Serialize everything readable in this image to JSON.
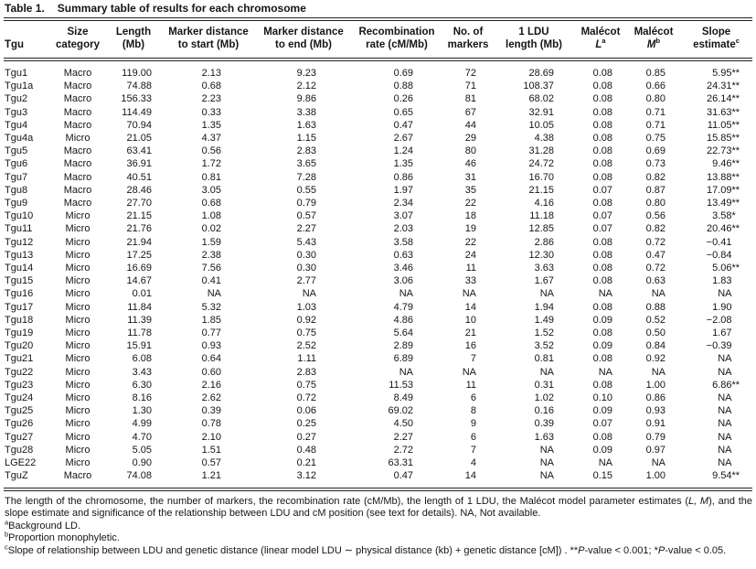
{
  "title": {
    "label": "Table 1.",
    "caption": "Summary table of results for each chromosome"
  },
  "table": {
    "columns": [
      {
        "id": "tgu",
        "line1": "",
        "line2": "Tgu"
      },
      {
        "id": "size",
        "line1": "Size",
        "line2": "category"
      },
      {
        "id": "length",
        "line1": "Length",
        "line2": "(Mb)"
      },
      {
        "id": "mdstart",
        "line1": "Marker distance",
        "line2": "to start (Mb)"
      },
      {
        "id": "mdend",
        "line1": "Marker distance",
        "line2": "to end (Mb)"
      },
      {
        "id": "recomb",
        "line1": "Recombination",
        "line2": "rate (cM/Mb)"
      },
      {
        "id": "markers",
        "line1": "No. of",
        "line2": "markers"
      },
      {
        "id": "ldu",
        "line1": "1 LDU",
        "line2": "length (Mb)"
      },
      {
        "id": "ml",
        "line1": "Malécot",
        "line2": "L",
        "italic2": true,
        "sup": "a"
      },
      {
        "id": "mm",
        "line1": "Malécot",
        "line2": "M",
        "italic2": true,
        "sup": "b"
      },
      {
        "id": "slope",
        "line1": "Slope",
        "line2": "estimate",
        "sup": "c"
      }
    ],
    "rows": [
      [
        "Tgu1",
        "Macro",
        "119.00",
        "2.13",
        "9.23",
        "0.69",
        "72",
        "28.69",
        "0.08",
        "0.85",
        "5.95**"
      ],
      [
        "Tgu1a",
        "Macro",
        "74.88",
        "0.68",
        "2.12",
        "0.88",
        "71",
        "108.37",
        "0.08",
        "0.66",
        "24.31**"
      ],
      [
        "Tgu2",
        "Macro",
        "156.33",
        "2.23",
        "9.86",
        "0.26",
        "81",
        "68.02",
        "0.08",
        "0.80",
        "26.14**"
      ],
      [
        "Tgu3",
        "Macro",
        "114.49",
        "0.33",
        "3.38",
        "0.65",
        "67",
        "32.91",
        "0.08",
        "0.71",
        "31.63**"
      ],
      [
        "Tgu4",
        "Macro",
        "70.94",
        "1.35",
        "1.63",
        "0.47",
        "44",
        "10.05",
        "0.08",
        "0.71",
        "11.05**"
      ],
      [
        "Tgu4a",
        "Micro",
        "21.05",
        "4.37",
        "1.15",
        "2.67",
        "29",
        "4.38",
        "0.08",
        "0.75",
        "15.85**"
      ],
      [
        "Tgu5",
        "Macro",
        "63.41",
        "0.56",
        "2.83",
        "1.24",
        "80",
        "31.28",
        "0.08",
        "0.69",
        "22.73**"
      ],
      [
        "Tgu6",
        "Macro",
        "36.91",
        "1.72",
        "3.65",
        "1.35",
        "46",
        "24.72",
        "0.08",
        "0.73",
        "9.46**"
      ],
      [
        "Tgu7",
        "Macro",
        "40.51",
        "0.81",
        "7.28",
        "0.86",
        "31",
        "16.70",
        "0.08",
        "0.82",
        "13.88**"
      ],
      [
        "Tgu8",
        "Macro",
        "28.46",
        "3.05",
        "0.55",
        "1.97",
        "35",
        "21.15",
        "0.07",
        "0.87",
        "17.09**"
      ],
      [
        "Tgu9",
        "Macro",
        "27.70",
        "0.68",
        "0.79",
        "2.34",
        "22",
        "4.16",
        "0.08",
        "0.80",
        "13.49**"
      ],
      [
        "Tgu10",
        "Micro",
        "21.15",
        "1.08",
        "0.57",
        "3.07",
        "18",
        "11.18",
        "0.07",
        "0.56",
        "3.58*"
      ],
      [
        "Tgu11",
        "Micro",
        "21.76",
        "0.02",
        "2.27",
        "2.03",
        "19",
        "12.85",
        "0.07",
        "0.82",
        "20.46**"
      ],
      [
        "Tgu12",
        "Micro",
        "21.94",
        "1.59",
        "5.43",
        "3.58",
        "22",
        "2.86",
        "0.08",
        "0.72",
        "−0.41"
      ],
      [
        "Tgu13",
        "Micro",
        "17.25",
        "2.38",
        "0.30",
        "0.63",
        "24",
        "12.30",
        "0.08",
        "0.47",
        "−0.84"
      ],
      [
        "Tgu14",
        "Micro",
        "16.69",
        "7.56",
        "0.30",
        "3.46",
        "11",
        "3.63",
        "0.08",
        "0.72",
        "5.06**"
      ],
      [
        "Tgu15",
        "Micro",
        "14.67",
        "0.41",
        "2.77",
        "3.06",
        "33",
        "1.67",
        "0.08",
        "0.63",
        "1.83"
      ],
      [
        "Tgu16",
        "Micro",
        "0.01",
        "NA",
        "NA",
        "NA",
        "NA",
        "NA",
        "NA",
        "NA",
        "NA"
      ],
      [
        "Tgu17",
        "Micro",
        "11.84",
        "5.32",
        "1.03",
        "4.79",
        "14",
        "1.94",
        "0.08",
        "0.88",
        "1.90"
      ],
      [
        "Tgu18",
        "Micro",
        "11.39",
        "1.85",
        "0.92",
        "4.86",
        "10",
        "1.49",
        "0.09",
        "0.52",
        "−2.08"
      ],
      [
        "Tgu19",
        "Micro",
        "11.78",
        "0.77",
        "0.75",
        "5.64",
        "21",
        "1.52",
        "0.08",
        "0.50",
        "1.67"
      ],
      [
        "Tgu20",
        "Micro",
        "15.91",
        "0.93",
        "2.52",
        "2.89",
        "16",
        "3.52",
        "0.09",
        "0.84",
        "−0.39"
      ],
      [
        "Tgu21",
        "Micro",
        "6.08",
        "0.64",
        "1.11",
        "6.89",
        "7",
        "0.81",
        "0.08",
        "0.92",
        "NA"
      ],
      [
        "Tgu22",
        "Micro",
        "3.43",
        "0.60",
        "2.83",
        "NA",
        "NA",
        "NA",
        "NA",
        "NA",
        "NA"
      ],
      [
        "Tgu23",
        "Micro",
        "6.30",
        "2.16",
        "0.75",
        "11.53",
        "11",
        "0.31",
        "0.08",
        "1.00",
        "6.86**"
      ],
      [
        "Tgu24",
        "Micro",
        "8.16",
        "2.62",
        "0.72",
        "8.49",
        "6",
        "1.02",
        "0.10",
        "0.86",
        "NA"
      ],
      [
        "Tgu25",
        "Micro",
        "1.30",
        "0.39",
        "0.06",
        "69.02",
        "8",
        "0.16",
        "0.09",
        "0.93",
        "NA"
      ],
      [
        "Tgu26",
        "Micro",
        "4.99",
        "0.78",
        "0.25",
        "4.50",
        "9",
        "0.39",
        "0.07",
        "0.91",
        "NA"
      ],
      [
        "Tgu27",
        "Micro",
        "4.70",
        "2.10",
        "0.27",
        "2.27",
        "6",
        "1.63",
        "0.08",
        "0.79",
        "NA"
      ],
      [
        "Tgu28",
        "Micro",
        "5.05",
        "1.51",
        "0.48",
        "2.72",
        "7",
        "NA",
        "0.09",
        "0.97",
        "NA"
      ],
      [
        "LGE22",
        "Micro",
        "0.90",
        "0.57",
        "0.21",
        "63.31",
        "4",
        "NA",
        "NA",
        "NA",
        "NA"
      ],
      [
        "TguZ",
        "Macro",
        "74.08",
        "1.21",
        "3.12",
        "0.47",
        "14",
        "NA",
        "0.15",
        "1.00",
        "9.54**"
      ]
    ]
  },
  "footnotes": [
    {
      "segments": [
        {
          "t": "The length of the chromosome, the number of markers, the recombination rate (cM/Mb), the length of 1 LDU, the Malécot model parameter estimates ("
        },
        {
          "t": "L, M",
          "i": true
        },
        {
          "t": "), and the slope estimate and significance of the relationship between LDU and cM position (see text for details). NA, Not available."
        }
      ]
    },
    {
      "segments": [
        {
          "t": "a",
          "sup": true
        },
        {
          "t": "Background LD."
        }
      ]
    },
    {
      "segments": [
        {
          "t": "b",
          "sup": true
        },
        {
          "t": "Proportion monophyletic."
        }
      ]
    },
    {
      "segments": [
        {
          "t": "c",
          "sup": true
        },
        {
          "t": "Slope of relationship between LDU and genetic distance (linear model LDU ∼ physical distance (kb) + genetic distance [cM]) . **"
        },
        {
          "t": "P",
          "i": true
        },
        {
          "t": "-value < 0.001; *"
        },
        {
          "t": "P",
          "i": true
        },
        {
          "t": "-value < 0.05."
        }
      ]
    }
  ]
}
